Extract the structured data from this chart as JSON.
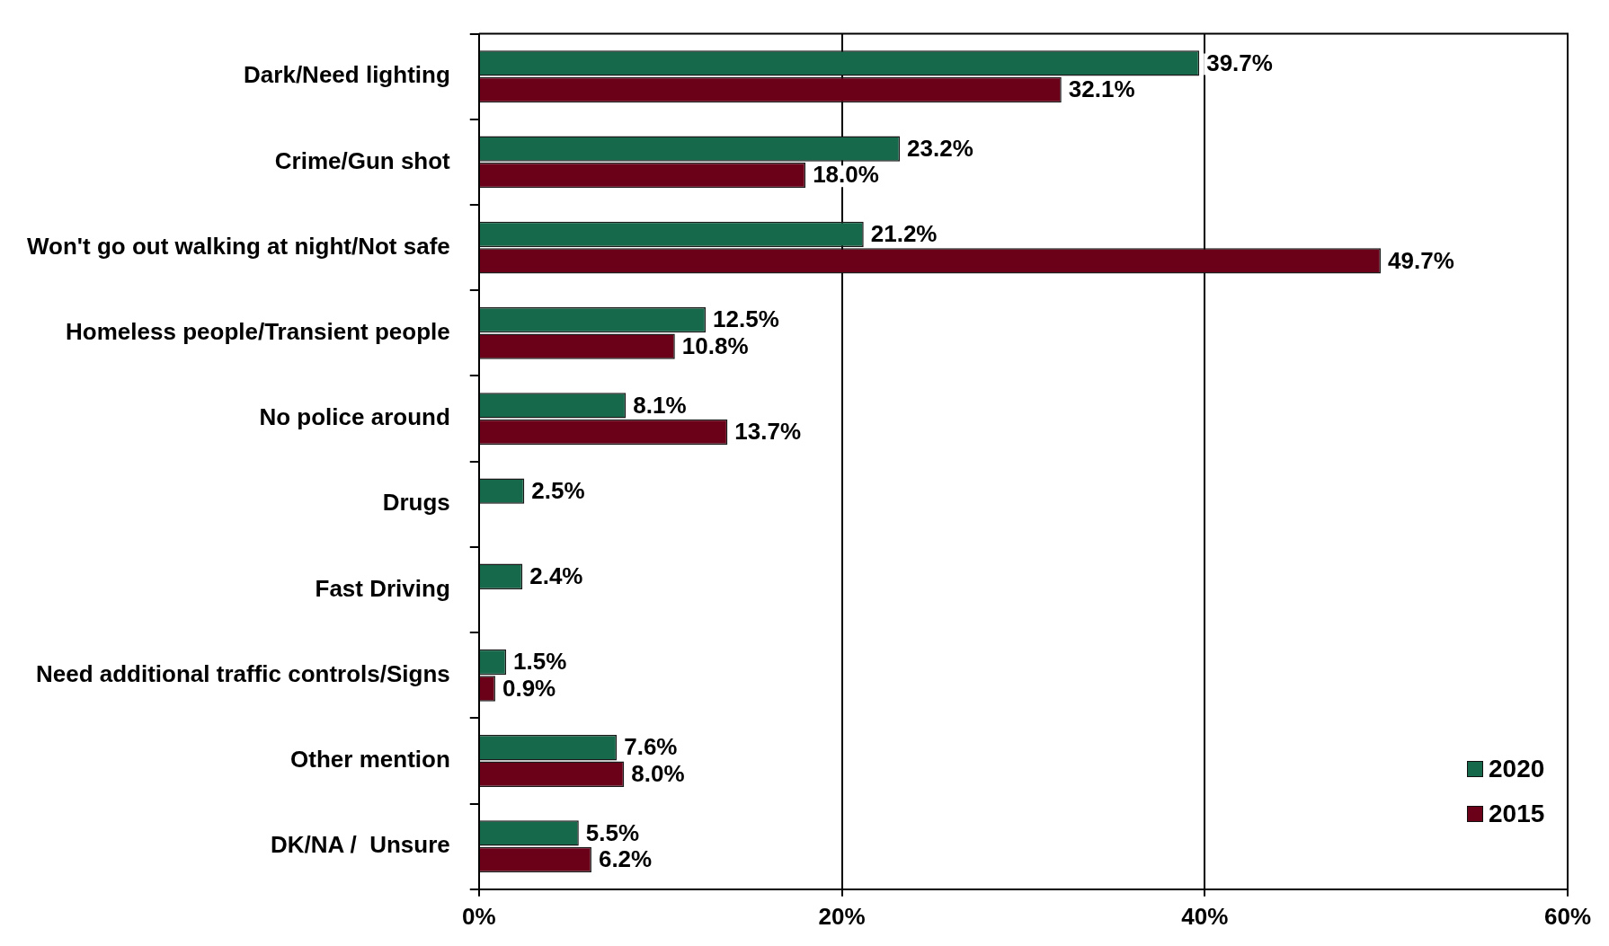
{
  "chart_data": {
    "type": "bar",
    "orientation": "horizontal",
    "categories": [
      "Dark/Need lighting",
      "Crime/Gun shot",
      "Won't go out walking at night/Not safe",
      "Homeless people/Transient people",
      "No police around",
      "Drugs",
      "Fast Driving",
      "Need additional traffic controls/Signs",
      "Other mention",
      "DK/NA /  Unsure"
    ],
    "series": [
      {
        "name": "2020",
        "color": "#16694b",
        "values": [
          39.7,
          23.2,
          21.2,
          12.5,
          8.1,
          2.5,
          2.4,
          1.5,
          7.6,
          5.5
        ],
        "value_labels": [
          "39.7%",
          "23.2%",
          "21.2%",
          "12.5%",
          "8.1%",
          "2.5%",
          "2.4%",
          "1.5%",
          "7.6%",
          "5.5%"
        ]
      },
      {
        "name": "2015",
        "color": "#6b0019",
        "values": [
          32.1,
          18.0,
          49.7,
          10.8,
          13.7,
          null,
          null,
          0.9,
          8.0,
          6.2
        ],
        "value_labels": [
          "32.1%",
          "18.0%",
          "49.7%",
          "10.8%",
          "13.7%",
          null,
          null,
          "0.9%",
          "8.0%",
          "6.2%"
        ]
      }
    ],
    "xlim": [
      0,
      60
    ],
    "xticks": [
      {
        "value": 0,
        "label": "0%"
      },
      {
        "value": 20,
        "label": "20%"
      },
      {
        "value": 40,
        "label": "40%"
      },
      {
        "value": 60,
        "label": "60%"
      }
    ],
    "grid": "x",
    "legend": "bottom right"
  }
}
